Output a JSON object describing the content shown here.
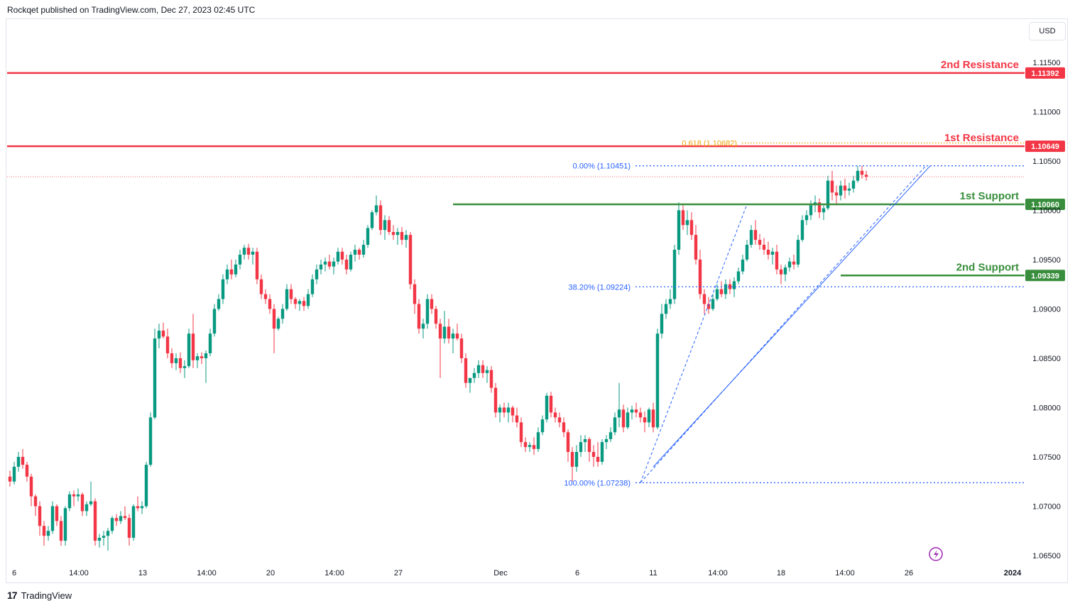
{
  "header": {
    "publish_line": "Rockqet published on TradingView.com, Dec 27, 2023 02:45 UTC"
  },
  "currency_label": "USD",
  "footer": {
    "brand": "TradingView",
    "logo_glyph": "17"
  },
  "colors": {
    "up": "#089981",
    "down": "#f23645",
    "resistance": "#f23645",
    "support": "#388e3c",
    "fib": "#2962ff",
    "fib618": "#f0a30a"
  },
  "chart_data": {
    "type": "candlestick",
    "symbol_quote": "USD",
    "ylim": [
      1.0645,
      1.117
    ],
    "y_ticks": [
      "1.11500",
      "1.11000",
      "1.10500",
      "1.10000",
      "1.09500",
      "1.09000",
      "1.08500",
      "1.08000",
      "1.07500",
      "1.07000",
      "1.06500"
    ],
    "x_ticks": [
      "6",
      "14:00",
      "13",
      "14:00",
      "20",
      "14:00",
      "27",
      "Dec",
      "6",
      "11",
      "14:00",
      "18",
      "14:00",
      "26",
      "2024"
    ],
    "levels": [
      {
        "label": "2nd Resistance",
        "value": 1.11392,
        "tag": "1.11392",
        "kind": "resistance"
      },
      {
        "label": "1st Resistance",
        "value": 1.10649,
        "tag": "1.10649",
        "kind": "resistance"
      },
      {
        "label": "1st Support",
        "value": 1.1006,
        "tag": "1.10060",
        "kind": "support"
      },
      {
        "label": "2nd Support",
        "value": 1.09339,
        "tag": "1.09339",
        "kind": "support"
      }
    ],
    "fibonacci": [
      {
        "label": "0.618 (1.10682)",
        "value": 1.10682
      },
      {
        "label": "0.00% (1.10451)",
        "value": 1.10451
      },
      {
        "label": "38.20% (1.09224)",
        "value": 1.09224
      },
      {
        "label": "100.00% (1.07238)",
        "value": 1.07238
      }
    ],
    "last_price": 1.1034,
    "candles": [
      [
        1.073,
        1.0736,
        1.072,
        1.0725
      ],
      [
        1.0725,
        1.0745,
        1.0722,
        1.074
      ],
      [
        1.074,
        1.0755,
        1.0735,
        1.075
      ],
      [
        1.075,
        1.0758,
        1.0738,
        1.0742
      ],
      [
        1.0742,
        1.0745,
        1.0725,
        1.073
      ],
      [
        1.073,
        1.0733,
        1.07,
        1.071
      ],
      [
        1.071,
        1.0712,
        1.069,
        1.07
      ],
      [
        1.07,
        1.0705,
        1.067,
        1.068
      ],
      [
        1.068,
        1.0685,
        1.066,
        1.067
      ],
      [
        1.067,
        1.068,
        1.0665,
        1.0675
      ],
      [
        1.0675,
        1.0705,
        1.0672,
        1.07
      ],
      [
        1.07,
        1.0702,
        1.068,
        1.0685
      ],
      [
        1.0685,
        1.069,
        1.066,
        1.0665
      ],
      [
        1.0665,
        1.07,
        1.066,
        1.0698
      ],
      [
        1.0698,
        1.0715,
        1.0695,
        1.0712
      ],
      [
        1.0712,
        1.0716,
        1.07,
        1.071
      ],
      [
        1.071,
        1.0718,
        1.0705,
        1.0712
      ],
      [
        1.0712,
        1.0714,
        1.069,
        1.0695
      ],
      [
        1.0695,
        1.0705,
        1.069,
        1.0702
      ],
      [
        1.0702,
        1.0725,
        1.07,
        1.0705
      ],
      [
        1.0705,
        1.0708,
        1.066,
        1.0665
      ],
      [
        1.0665,
        1.0672,
        1.0658,
        1.0668
      ],
      [
        1.0668,
        1.0675,
        1.066,
        1.067
      ],
      [
        1.067,
        1.0678,
        1.0655,
        1.0675
      ],
      [
        1.0675,
        1.069,
        1.0672,
        1.0688
      ],
      [
        1.0688,
        1.0692,
        1.068,
        1.0685
      ],
      [
        1.0685,
        1.0695,
        1.0682,
        1.069
      ],
      [
        1.069,
        1.07,
        1.0686,
        1.0688
      ],
      [
        1.0688,
        1.0692,
        1.066,
        1.0668
      ],
      [
        1.0668,
        1.0702,
        1.0665,
        1.07
      ],
      [
        1.07,
        1.071,
        1.0695,
        1.0698
      ],
      [
        1.0698,
        1.0705,
        1.0692,
        1.07
      ],
      [
        1.07,
        1.0745,
        1.0698,
        1.0742
      ],
      [
        1.0742,
        1.0795,
        1.074,
        1.079
      ],
      [
        1.079,
        1.088,
        1.0788,
        1.087
      ],
      [
        1.087,
        1.0885,
        1.086,
        1.0878
      ],
      [
        1.0878,
        1.0886,
        1.087,
        1.0872
      ],
      [
        1.0872,
        1.088,
        1.085,
        1.0855
      ],
      [
        1.0855,
        1.086,
        1.084,
        1.0845
      ],
      [
        1.0845,
        1.0855,
        1.0838,
        1.085
      ],
      [
        1.085,
        1.0856,
        1.0835,
        1.084
      ],
      [
        1.084,
        1.0848,
        1.083,
        1.0842
      ],
      [
        1.0842,
        1.088,
        1.084,
        1.0875
      ],
      [
        1.0875,
        1.0895,
        1.084,
        1.0848
      ],
      [
        1.0848,
        1.0855,
        1.084,
        1.0852
      ],
      [
        1.0852,
        1.0856,
        1.0844,
        1.085
      ],
      [
        1.085,
        1.0858,
        1.0825,
        1.0855
      ],
      [
        1.0855,
        1.088,
        1.0852,
        1.0875
      ],
      [
        1.0875,
        1.0905,
        1.0872,
        1.09
      ],
      [
        1.09,
        1.0915,
        1.0898,
        1.091
      ],
      [
        1.091,
        1.0935,
        1.0905,
        1.093
      ],
      [
        1.093,
        1.0945,
        1.0925,
        1.094
      ],
      [
        1.094,
        1.095,
        1.093,
        1.0935
      ],
      [
        1.0935,
        1.095,
        1.0932,
        1.0945
      ],
      [
        1.0945,
        1.096,
        1.094,
        1.0955
      ],
      [
        1.0955,
        1.0965,
        1.095,
        1.0962
      ],
      [
        1.0962,
        1.0966,
        1.095,
        1.0955
      ],
      [
        1.0955,
        1.0962,
        1.0945,
        1.0958
      ],
      [
        1.0958,
        1.0962,
        1.0925,
        1.093
      ],
      [
        1.093,
        1.0935,
        1.091,
        1.0915
      ],
      [
        1.0915,
        1.092,
        1.0905,
        1.091
      ],
      [
        1.091,
        1.0915,
        1.0895,
        1.09
      ],
      [
        1.09,
        1.0905,
        1.0855,
        1.088
      ],
      [
        1.088,
        1.0892,
        1.0878,
        1.089
      ],
      [
        1.089,
        1.0905,
        1.0885,
        1.09
      ],
      [
        1.09,
        1.0925,
        1.0898,
        1.092
      ],
      [
        1.092,
        1.0925,
        1.0905,
        1.091
      ],
      [
        1.091,
        1.0912,
        1.09,
        1.0905
      ],
      [
        1.0905,
        1.091,
        1.0898,
        1.0908
      ],
      [
        1.0908,
        1.0912,
        1.0898,
        1.0903
      ],
      [
        1.0903,
        1.092,
        1.09,
        1.0915
      ],
      [
        1.0915,
        1.0935,
        1.0912,
        1.093
      ],
      [
        1.093,
        1.0945,
        1.0925,
        1.094
      ],
      [
        1.094,
        1.095,
        1.0935,
        1.0945
      ],
      [
        1.0945,
        1.0952,
        1.0938,
        1.0948
      ],
      [
        1.0948,
        1.0955,
        1.094,
        1.0943
      ],
      [
        1.0943,
        1.0952,
        1.0935,
        1.0948
      ],
      [
        1.0948,
        1.0962,
        1.0945,
        1.0958
      ],
      [
        1.0958,
        1.0962,
        1.0945,
        1.095
      ],
      [
        1.095,
        1.0955,
        1.0935,
        1.094
      ],
      [
        1.094,
        1.0958,
        1.0938,
        1.0955
      ],
      [
        1.0955,
        1.0965,
        1.0948,
        1.096
      ],
      [
        1.096,
        1.0962,
        1.095,
        1.0955
      ],
      [
        1.0955,
        1.097,
        1.0952,
        1.0965
      ],
      [
        1.0965,
        1.0985,
        1.0962,
        1.0982
      ],
      [
        1.0982,
        1.1,
        1.098,
        1.0998
      ],
      [
        1.0998,
        1.1015,
        1.0995,
        1.1005
      ],
      [
        1.1005,
        1.101,
        1.0975,
        1.098
      ],
      [
        1.098,
        1.0995,
        1.097,
        1.099
      ],
      [
        1.099,
        1.0994,
        1.0975,
        1.0978
      ],
      [
        1.0978,
        1.0985,
        1.097,
        1.0975
      ],
      [
        1.0975,
        1.0982,
        1.0965,
        1.0978
      ],
      [
        1.0978,
        1.0983,
        1.0965,
        1.097
      ],
      [
        1.097,
        1.098,
        1.0962,
        1.0975
      ],
      [
        1.0975,
        1.0978,
        1.092,
        1.0925
      ],
      [
        1.0925,
        1.093,
        1.0895,
        1.0905
      ],
      [
        1.0905,
        1.091,
        1.0875,
        1.088
      ],
      [
        1.088,
        1.089,
        1.087,
        1.0885
      ],
      [
        1.0885,
        1.0915,
        1.088,
        1.091
      ],
      [
        1.091,
        1.0915,
        1.0895,
        1.09
      ],
      [
        1.09,
        1.0903,
        1.088,
        1.0885
      ],
      [
        1.0885,
        1.089,
        1.083,
        1.087
      ],
      [
        1.087,
        1.0898,
        1.0865,
        1.0882
      ],
      [
        1.0882,
        1.089,
        1.0865,
        1.087
      ],
      [
        1.087,
        1.088,
        1.0855,
        1.0875
      ],
      [
        1.0875,
        1.0885,
        1.0868,
        1.087
      ],
      [
        1.087,
        1.0875,
        1.0845,
        1.085
      ],
      [
        1.085,
        1.0855,
        1.082,
        1.0825
      ],
      [
        1.0825,
        1.083,
        1.0815,
        1.083
      ],
      [
        1.083,
        1.084,
        1.0825,
        1.0835
      ],
      [
        1.0835,
        1.0848,
        1.083,
        1.0843
      ],
      [
        1.0843,
        1.0848,
        1.083,
        1.0835
      ],
      [
        1.0835,
        1.0842,
        1.0825,
        1.0838
      ],
      [
        1.0838,
        1.0842,
        1.0815,
        1.082
      ],
      [
        1.082,
        1.0825,
        1.079,
        1.0795
      ],
      [
        1.0795,
        1.0803,
        1.0785,
        1.08
      ],
      [
        1.08,
        1.0805,
        1.079,
        1.0795
      ],
      [
        1.0795,
        1.0805,
        1.0785,
        1.08
      ],
      [
        1.08,
        1.0802,
        1.0785,
        1.0792
      ],
      [
        1.0792,
        1.08,
        1.078,
        1.0785
      ],
      [
        1.0785,
        1.079,
        1.076,
        1.0765
      ],
      [
        1.0765,
        1.077,
        1.0755,
        1.076
      ],
      [
        1.076,
        1.0765,
        1.0755,
        1.0762
      ],
      [
        1.0762,
        1.077,
        1.0752,
        1.0758
      ],
      [
        1.0758,
        1.078,
        1.0755,
        1.0775
      ],
      [
        1.0775,
        1.0792,
        1.0772,
        1.0788
      ],
      [
        1.0788,
        1.0815,
        1.0785,
        1.0812
      ],
      [
        1.0812,
        1.0816,
        1.079,
        1.0795
      ],
      [
        1.0795,
        1.08,
        1.0785,
        1.079
      ],
      [
        1.079,
        1.0795,
        1.078,
        1.0785
      ],
      [
        1.0785,
        1.079,
        1.077,
        1.0775
      ],
      [
        1.0775,
        1.0778,
        1.0745,
        1.0755
      ],
      [
        1.0755,
        1.076,
        1.0725,
        1.074
      ],
      [
        1.074,
        1.0762,
        1.0735,
        1.0755
      ],
      [
        1.0755,
        1.0772,
        1.075,
        1.0765
      ],
      [
        1.0765,
        1.0772,
        1.0755,
        1.0768
      ],
      [
        1.0768,
        1.077,
        1.0745,
        1.0755
      ],
      [
        1.0755,
        1.0762,
        1.074,
        1.075
      ],
      [
        1.075,
        1.0765,
        1.074,
        1.0745
      ],
      [
        1.0745,
        1.0768,
        1.0742,
        1.0765
      ],
      [
        1.0765,
        1.0772,
        1.0758,
        1.0768
      ],
      [
        1.0768,
        1.078,
        1.0765,
        1.0775
      ],
      [
        1.0775,
        1.0795,
        1.0772,
        1.079
      ],
      [
        1.079,
        1.0825,
        1.078,
        1.0798
      ],
      [
        1.0798,
        1.0803,
        1.0775,
        1.078
      ],
      [
        1.078,
        1.08,
        1.0778,
        1.0795
      ],
      [
        1.0795,
        1.0802,
        1.0788,
        1.0798
      ],
      [
        1.0798,
        1.0805,
        1.079,
        1.0795
      ],
      [
        1.0795,
        1.08,
        1.0785,
        1.079
      ],
      [
        1.079,
        1.0796,
        1.0775,
        1.0785
      ],
      [
        1.0785,
        1.08,
        1.078,
        1.0798
      ],
      [
        1.0798,
        1.0805,
        1.0775,
        1.078
      ],
      [
        1.078,
        1.088,
        1.0778,
        1.0875
      ],
      [
        1.0875,
        1.0905,
        1.087,
        1.0895
      ],
      [
        1.0895,
        1.091,
        1.089,
        1.0905
      ],
      [
        1.0905,
        1.092,
        1.09,
        1.091
      ],
      [
        1.091,
        1.0965,
        1.0905,
        1.096
      ],
      [
        1.096,
        1.1008,
        1.0955,
        1.1
      ],
      [
        1.1,
        1.1005,
        1.098,
        1.0985
      ],
      [
        1.0985,
        1.1,
        1.0975,
        1.099
      ],
      [
        1.099,
        1.0998,
        1.097,
        1.0975
      ],
      [
        1.0975,
        1.0985,
        1.0945,
        1.095
      ],
      [
        1.095,
        1.096,
        1.091,
        1.0915
      ],
      [
        1.0915,
        1.092,
        1.0895,
        1.0905
      ],
      [
        1.0905,
        1.0912,
        1.0895,
        1.09
      ],
      [
        1.09,
        1.0915,
        1.0898,
        1.091
      ],
      [
        1.091,
        1.0925,
        1.0908,
        1.092
      ],
      [
        1.092,
        1.0928,
        1.0912,
        1.0915
      ],
      [
        1.0915,
        1.093,
        1.091,
        1.0925
      ],
      [
        1.0925,
        1.093,
        1.0915,
        1.092
      ],
      [
        1.092,
        1.0932,
        1.0912,
        1.0928
      ],
      [
        1.0928,
        1.0942,
        1.0925,
        1.0938
      ],
      [
        1.0938,
        1.0955,
        1.0935,
        1.095
      ],
      [
        1.095,
        1.097,
        1.0948,
        1.0965
      ],
      [
        1.0965,
        1.0985,
        1.0962,
        1.098
      ],
      [
        1.098,
        1.099,
        1.0965,
        1.097
      ],
      [
        1.097,
        1.0976,
        1.096,
        1.0965
      ],
      [
        1.0965,
        1.0972,
        1.0955,
        1.096
      ],
      [
        1.096,
        1.0968,
        1.095,
        1.0955
      ],
      [
        1.0955,
        1.0962,
        1.0945,
        1.0958
      ],
      [
        1.0958,
        1.0965,
        1.0935,
        1.094
      ],
      [
        1.094,
        1.0945,
        1.0925,
        1.0935
      ],
      [
        1.0935,
        1.0945,
        1.0928,
        1.0942
      ],
      [
        1.0942,
        1.0952,
        1.0938,
        1.0948
      ],
      [
        1.0948,
        1.0955,
        1.094,
        1.0945
      ],
      [
        1.0945,
        1.0975,
        1.0942,
        1.097
      ],
      [
        1.097,
        1.0995,
        1.0968,
        1.099
      ],
      [
        1.099,
        1.1,
        1.0985,
        1.0995
      ],
      [
        1.0995,
        1.101,
        1.099,
        1.1005
      ],
      [
        1.1005,
        1.1015,
        1.0998,
        1.1008
      ],
      [
        1.1008,
        1.1012,
        1.0992,
        1.0998
      ],
      [
        1.0998,
        1.1005,
        1.099,
        1.1002
      ],
      [
        1.1002,
        1.1035,
        1.1,
        1.103
      ],
      [
        1.103,
        1.104,
        1.101,
        1.1018
      ],
      [
        1.1018,
        1.1025,
        1.1005,
        1.1015
      ],
      [
        1.1015,
        1.103,
        1.101,
        1.1025
      ],
      [
        1.1025,
        1.1032,
        1.1012,
        1.102
      ],
      [
        1.102,
        1.1028,
        1.1015,
        1.1022
      ],
      [
        1.1022,
        1.1035,
        1.1018,
        1.103
      ],
      [
        1.103,
        1.1045,
        1.1028,
        1.104
      ],
      [
        1.104,
        1.1045,
        1.1032,
        1.1036
      ],
      [
        1.1036,
        1.104,
        1.103,
        1.1034
      ]
    ]
  }
}
